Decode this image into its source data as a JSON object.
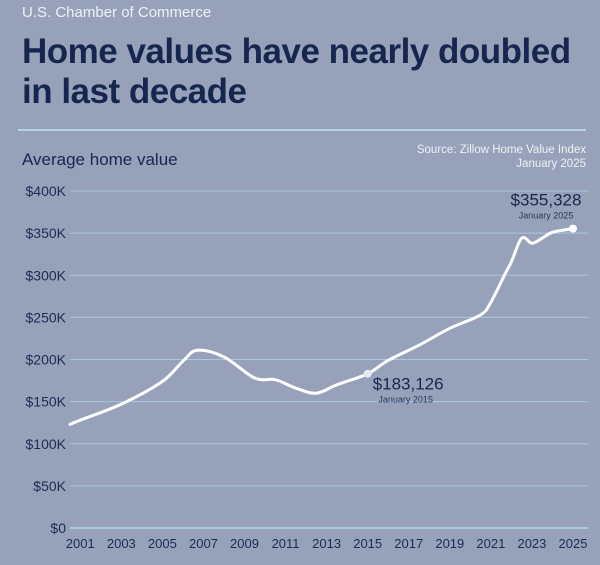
{
  "header": {
    "publisher": "U.S. Chamber of Commerce",
    "title": "Home values have nearly doubled in last decade"
  },
  "source": {
    "line1": "Source: Zillow Home Value Index",
    "line2": "January 2025"
  },
  "colors": {
    "background": "#97a2ba",
    "title": "#17264f",
    "grid": "#a9c7df",
    "line": "#ffffff"
  },
  "chart_data": {
    "type": "line",
    "title": "Home values have nearly doubled in last decade",
    "ylabel": "Average home value",
    "xlabel": "",
    "ylim": [
      0,
      400000
    ],
    "xlim": [
      2000.5,
      2025
    ],
    "yticks": [
      0,
      50000,
      100000,
      150000,
      200000,
      250000,
      300000,
      350000,
      400000
    ],
    "ytick_labels": [
      "$0",
      "$50K",
      "$100K",
      "$150K",
      "$200K",
      "$250K",
      "$300K",
      "$350K",
      "$400K"
    ],
    "xtick_labels": [
      "2001",
      "2003",
      "2005",
      "2007",
      "2009",
      "2011",
      "2013",
      "2015",
      "2017",
      "2019",
      "2021",
      "2023",
      "2025"
    ],
    "grid": true,
    "series": [
      {
        "name": "Average home value",
        "x": [
          2000.5,
          2001,
          2003,
          2005,
          2006,
          2006.7,
          2008,
          2009.5,
          2010.5,
          2011.5,
          2012.5,
          2013.5,
          2015,
          2016,
          2017.5,
          2019,
          2020.5,
          2021,
          2021.7,
          2022,
          2022.5,
          2023,
          2023.5,
          2024,
          2025
        ],
        "y": [
          123000,
          128000,
          147000,
          174000,
          198000,
          211000,
          203000,
          178000,
          176000,
          166000,
          160000,
          170000,
          183126,
          199000,
          217000,
          237000,
          253000,
          268000,
          302000,
          316000,
          344000,
          338000,
          344000,
          351000,
          355328
        ]
      }
    ],
    "annotations": [
      {
        "x": 2015,
        "y": 183126,
        "label": "$183,126",
        "sublabel": "January 2015"
      },
      {
        "x": 2025,
        "y": 355328,
        "label": "$355,328",
        "sublabel": "January 2025"
      }
    ]
  }
}
